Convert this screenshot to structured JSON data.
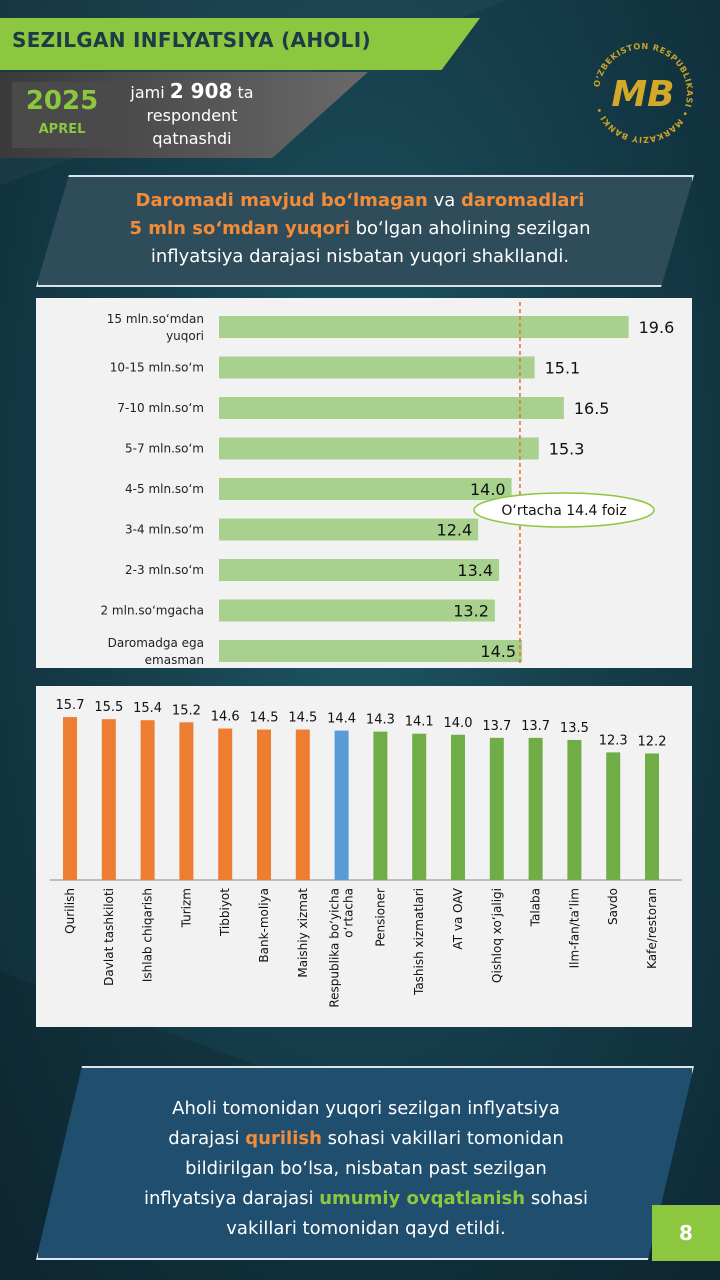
{
  "header": {
    "title": "SEZILGAN INFLYATSIYA (AHOLI)",
    "year": "2025",
    "month": "APREL",
    "respondents_prefix": "jami",
    "respondents_count": "2 908",
    "respondents_suffix": "ta",
    "respondents_line2": "respondent",
    "respondents_line3": "qatnashdi"
  },
  "logo": {
    "ring_text": "O‘ZBEKISTON RESPUBLIKASI • MARKAZIY BANKI •",
    "monogram": "MB"
  },
  "callout": {
    "p1": "Daromadi mavjud bo‘lmagan",
    "p2": " va ",
    "p3": "daromadlari",
    "p4": "5 mln so‘mdan yuqori",
    "p5": " bo‘lgan aholining sezilgan",
    "p6": "inflyatsiya darajasi nisbatan yuqori shakllandi."
  },
  "chart_data": [
    {
      "type": "bar",
      "orientation": "horizontal",
      "categories": [
        "15 mln.so‘mdan yuqori",
        "10-15 mln.so‘m",
        "7-10 mln.so‘m",
        "5-7 mln.so‘m",
        "4-5 mln.so‘m",
        "3-4 mln.so‘m",
        "2-3 mln.so‘m",
        "2 mln.so‘mgacha",
        "Daromadga ega emasman"
      ],
      "values": [
        19.6,
        15.1,
        16.5,
        15.3,
        14.0,
        12.4,
        13.4,
        13.2,
        14.5
      ],
      "reference_line": {
        "value": 14.4,
        "label": "O‘rtacha 14.4 foiz",
        "style": "dashed",
        "color": "#e07a3a"
      },
      "bar_color": "#a9d18e",
      "xlim": [
        0,
        20
      ]
    },
    {
      "type": "bar",
      "orientation": "vertical",
      "categories": [
        "Qurilish",
        "Davlat tashkiloti",
        "Ishlab chiqarish",
        "Turizm",
        "Tibbiyot",
        "Bank-moliya",
        "Maishiy xizmat",
        "Respublika bo‘yicha o‘rtacha",
        "Pensioner",
        "Tashish xizmatlari",
        "AT va OAV",
        "Qishloq xo‘jaligi",
        "Talaba",
        "Ilm-fan/ta’lim",
        "Savdo",
        "Kafe/restoran"
      ],
      "category_lines": [
        [
          "Qurilish"
        ],
        [
          "Davlat tashkiloti"
        ],
        [
          "Ishlab chiqarish"
        ],
        [
          "Turizm"
        ],
        [
          "Tibbiyot"
        ],
        [
          "Bank-moliya"
        ],
        [
          "Maishiy xizmat"
        ],
        [
          "Respublika bo‘yicha",
          "o‘rtacha"
        ],
        [
          "Pensioner"
        ],
        [
          "Tashish xizmatlari"
        ],
        [
          "AT va OAV"
        ],
        [
          "Qishloq xo‘jaligi"
        ],
        [
          "Talaba"
        ],
        [
          "Ilm-fan/ta’lim"
        ],
        [
          "Savdo"
        ],
        [
          "Kafe/restoran"
        ]
      ],
      "values": [
        15.7,
        15.5,
        15.4,
        15.2,
        14.6,
        14.5,
        14.5,
        14.4,
        14.3,
        14.1,
        14.0,
        13.7,
        13.7,
        13.5,
        12.3,
        12.2
      ],
      "colors": [
        "#ed7d31",
        "#ed7d31",
        "#ed7d31",
        "#ed7d31",
        "#ed7d31",
        "#ed7d31",
        "#ed7d31",
        "#5b9bd5",
        "#70ad47",
        "#70ad47",
        "#70ad47",
        "#70ad47",
        "#70ad47",
        "#70ad47",
        "#70ad47",
        "#70ad47"
      ],
      "ylim": [
        0,
        16
      ]
    }
  ],
  "bottom": {
    "l1": "Aholi tomonidan yuqori sezilgan inflyatsiya",
    "l2a": "darajasi ",
    "l2b": "qurilish",
    "l2c": " sohasi vakillari tomonidan",
    "l3": "bildirilgan bo‘lsa, nisbatan past sezilgan",
    "l4a": "inflyatsiya darajasi ",
    "l4b": "umumiy ovqatlanish",
    "l4c": " sohasi",
    "l5": "vakillari tomonidan qayd etildi."
  },
  "page_number": "8"
}
